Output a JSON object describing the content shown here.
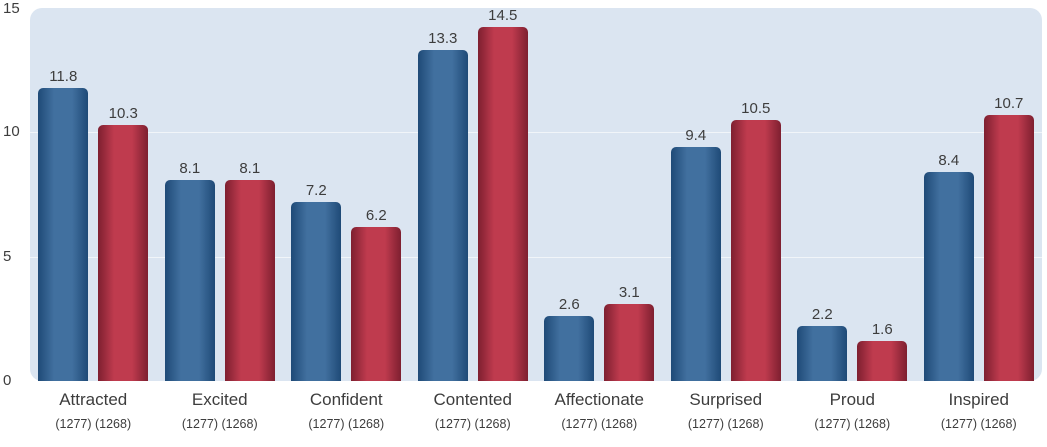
{
  "chart_data": {
    "type": "bar",
    "title": "",
    "xlabel": "",
    "ylabel": "",
    "legend": "none",
    "categories": [
      "Attracted",
      "Excited",
      "Confident",
      "Contented",
      "Affectionate",
      "Surprised",
      "Proud",
      "Inspired"
    ],
    "category_counts": [
      "(1277) (1268)",
      "(1277) (1268)",
      "(1277) (1268)",
      "(1277) (1268)",
      "(1277) (1268)",
      "(1277) (1268)",
      "(1277) (1268)",
      "(1277) (1268)"
    ],
    "series": [
      {
        "name": "series-blue",
        "edge_color": "#1f4a77",
        "mid_color": "#41709f",
        "values": [
          11.8,
          8.1,
          7.2,
          13.3,
          2.6,
          9.4,
          2.2,
          8.4
        ]
      },
      {
        "name": "series-red",
        "edge_color": "#7e1f30",
        "mid_color": "#bf3b4e",
        "values": [
          10.3,
          8.1,
          6.2,
          14.5,
          3.1,
          10.5,
          1.6,
          10.7
        ]
      }
    ],
    "ylim": [
      0,
      15
    ],
    "yticks": [
      15,
      10,
      5,
      0
    ],
    "grid_values": [
      5,
      10
    ],
    "plot_bg": "#dbe5f1"
  }
}
